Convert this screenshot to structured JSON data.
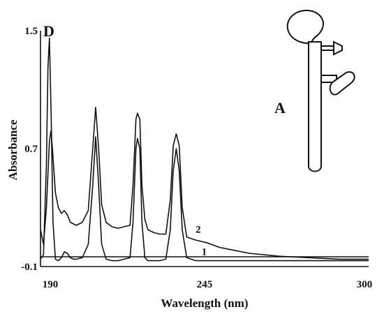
{
  "chart_data": {
    "type": "line",
    "title": "",
    "xlabel": "Wavelength (nm)",
    "ylabel": "Absorbance",
    "xlim": [
      190,
      300
    ],
    "ylim": [
      -0.1,
      1.5
    ],
    "x_tick_labels": [
      "190",
      "245",
      "300"
    ],
    "x_tick_values": [
      190,
      245,
      300
    ],
    "y_tick_labels": [
      "-0.1",
      "0.7",
      "1.5"
    ],
    "y_tick_values": [
      -0.1,
      0.7,
      1.5
    ],
    "grid": false,
    "panel_labels": [
      "D",
      "A"
    ],
    "series": [
      {
        "name": "1",
        "x": [
          190,
          191,
          192,
          192.5,
          193,
          193.6,
          194.2,
          195,
          196,
          197,
          198,
          199,
          200,
          201,
          202,
          204,
          206,
          207.5,
          208.5,
          209.5,
          210.5,
          212,
          214,
          216,
          218,
          220,
          221,
          222,
          222.5,
          223.3,
          224,
          225,
          226,
          228,
          230,
          232,
          233.5,
          234.5,
          235.5,
          236.5,
          237.5,
          239,
          242,
          250,
          270,
          300
        ],
        "y": [
          -0.05,
          -0.02,
          0.6,
          1.25,
          1.45,
          0.9,
          0.2,
          -0.05,
          -0.06,
          -0.04,
          0.0,
          -0.01,
          -0.04,
          -0.05,
          -0.05,
          -0.04,
          0.05,
          0.45,
          0.78,
          0.45,
          0.05,
          -0.05,
          -0.06,
          -0.06,
          -0.05,
          -0.04,
          0.2,
          0.7,
          0.77,
          0.7,
          0.2,
          -0.04,
          -0.06,
          -0.06,
          -0.06,
          -0.05,
          0.15,
          0.55,
          0.7,
          0.55,
          0.15,
          -0.04,
          -0.06,
          -0.06,
          -0.06,
          -0.06
        ]
      },
      {
        "name": "2",
        "x": [
          190,
          191,
          192,
          193,
          193.5,
          194,
          195,
          196,
          197,
          198,
          199,
          200,
          202,
          204,
          206,
          207.5,
          208.5,
          209.5,
          210.5,
          212,
          214,
          216,
          218,
          220,
          221,
          222,
          222.5,
          223.3,
          224,
          225,
          226,
          228,
          230,
          232,
          233.5,
          234.5,
          235.5,
          236.5,
          237.5,
          239,
          242,
          246,
          250,
          255,
          260,
          270,
          280,
          290,
          300
        ],
        "y": [
          0.15,
          0.05,
          0.3,
          0.75,
          0.82,
          0.7,
          0.4,
          0.3,
          0.26,
          0.28,
          0.25,
          0.2,
          0.18,
          0.2,
          0.28,
          0.7,
          0.98,
          0.7,
          0.32,
          0.2,
          0.17,
          0.16,
          0.17,
          0.18,
          0.45,
          0.9,
          0.94,
          0.9,
          0.45,
          0.22,
          0.15,
          0.13,
          0.12,
          0.12,
          0.35,
          0.72,
          0.8,
          0.72,
          0.3,
          0.1,
          0.08,
          0.06,
          0.03,
          0.01,
          -0.01,
          -0.03,
          -0.04,
          -0.05,
          -0.05
        ]
      }
    ]
  }
}
